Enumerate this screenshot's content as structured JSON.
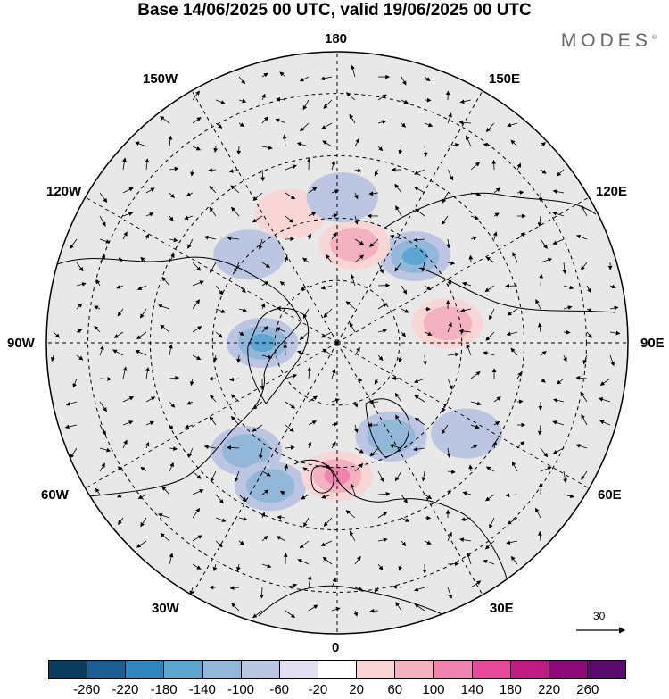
{
  "title": "Base 14/06/2025 00 UTC, valid 19/06/2025 00 UTC",
  "brand": "MODES",
  "brand_mark": "©",
  "map": {
    "projection": "north-polar-stereographic",
    "longitude_labels": {
      "top": "180",
      "bottom": "0",
      "left": "90W",
      "right": "90E",
      "upper_left_outer": "120W",
      "upper_left_inner": "150W",
      "upper_right_inner": "150E",
      "upper_right_outer": "120E",
      "lower_left_outer": "60W",
      "lower_left_inner": "30W",
      "lower_right_inner": "30E",
      "lower_right_outer": "60E"
    },
    "wind_reference_label": "30",
    "background_color": "#e8e8e8",
    "coastline_color": "#000000",
    "grid_style": "dashed"
  },
  "colorbar": {
    "colors": [
      "#0b3d5e",
      "#1c5f94",
      "#2f86bf",
      "#5ea6d2",
      "#93b7d9",
      "#bcc6e2",
      "#e2e0ef",
      "#ffffff",
      "#f8d6d6",
      "#f4b1bf",
      "#ef85ae",
      "#e6489a",
      "#c01a83",
      "#8e0a79",
      "#5b0a6e"
    ],
    "tick_labels": [
      "-260",
      "-220",
      "-180",
      "-140",
      "-100",
      "-60",
      "-20",
      "20",
      "60",
      "100",
      "140",
      "180",
      "220",
      "260"
    ]
  },
  "anomalies": [
    {
      "kind": "negative",
      "lon": 138,
      "lat": 62,
      "level": 3,
      "name": "anom-siberia-low"
    },
    {
      "kind": "positive",
      "lon": 100,
      "lat": 63,
      "level": 2,
      "name": "anom-siberia-high"
    },
    {
      "kind": "positive",
      "lon": 170,
      "lat": 66,
      "level": 2,
      "name": "anom-chukotka-high"
    },
    {
      "kind": "negative",
      "lon": -90,
      "lat": 72,
      "level": 3,
      "name": "anom-canada-low"
    },
    {
      "kind": "negative",
      "lon": -40,
      "lat": 56,
      "level": 2,
      "name": "anom-atlantic-low-1"
    },
    {
      "kind": "negative",
      "lon": -25,
      "lat": 52,
      "level": 2,
      "name": "anom-atlantic-low-2"
    },
    {
      "kind": "positive",
      "lon": 0,
      "lat": 58,
      "level": 3,
      "name": "anom-uk-high"
    },
    {
      "kind": "negative",
      "lon": 30,
      "lat": 64,
      "level": 2,
      "name": "anom-scandinavia-low"
    },
    {
      "kind": "negative",
      "lon": 55,
      "lat": 52,
      "level": 1,
      "name": "anom-russia-low"
    },
    {
      "kind": "negative",
      "lon": -135,
      "lat": 60,
      "level": 1,
      "name": "anom-alaska-low"
    },
    {
      "kind": "positive",
      "lon": -160,
      "lat": 57,
      "level": 1,
      "name": "anom-pacific-high"
    },
    {
      "kind": "negative",
      "lon": 178,
      "lat": 55,
      "level": 1,
      "name": "anom-bering-low"
    }
  ]
}
